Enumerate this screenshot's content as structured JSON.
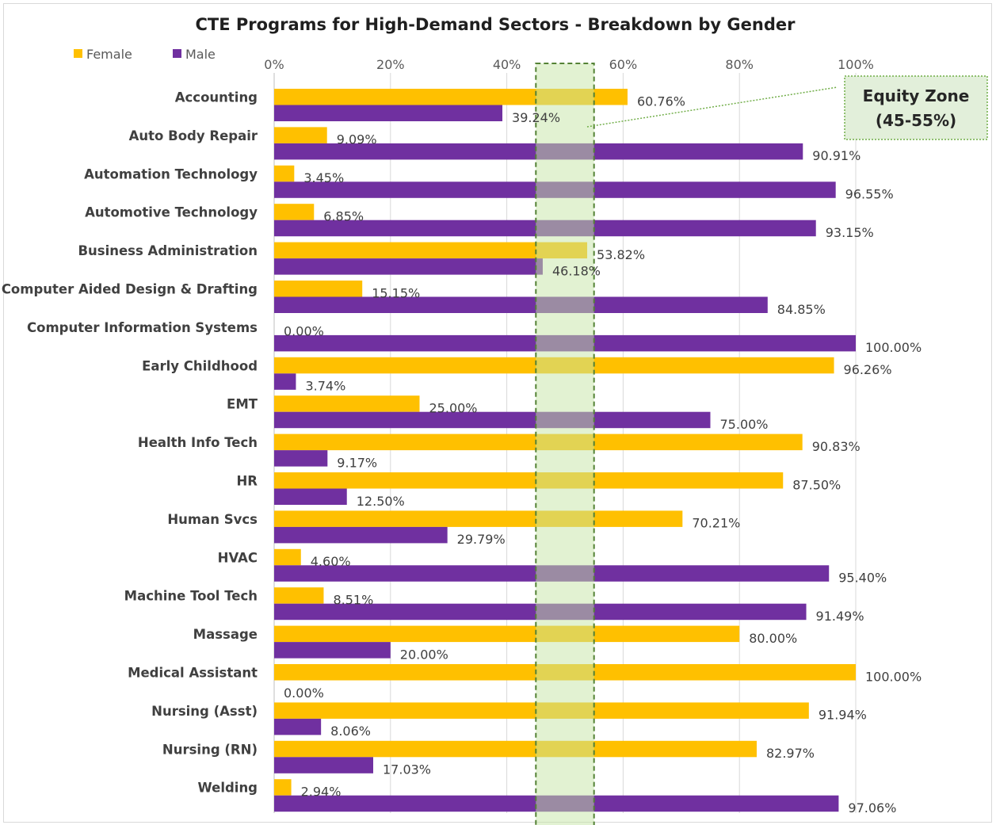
{
  "chart_data": {
    "type": "bar",
    "orientation": "horizontal",
    "title": "CTE Programs for High-Demand Sectors - Breakdown by Gender",
    "xlim": [
      0,
      100
    ],
    "x_ticks": [
      "0%",
      "20%",
      "40%",
      "60%",
      "80%",
      "100%"
    ],
    "x_tick_values": [
      0,
      20,
      40,
      60,
      80,
      100
    ],
    "grid": true,
    "legend_position": "top-left",
    "categories": [
      "Accounting",
      "Auto Body Repair",
      "Automation Technology",
      "Automotive Technology",
      "Business Administration",
      "Computer Aided Design & Drafting",
      "Computer Information Systems",
      "Early Childhood",
      "EMT",
      "Health Info Tech",
      "HR",
      "Human Svcs",
      "HVAC",
      "Machine Tool Tech",
      "Massage",
      "Medical Assistant",
      "Nursing (Asst)",
      "Nursing (RN)",
      "Welding"
    ],
    "series": [
      {
        "name": "Female",
        "color": "#FFC000",
        "values": [
          60.76,
          9.09,
          3.45,
          6.85,
          53.82,
          15.15,
          0.0,
          96.26,
          25.0,
          90.83,
          87.5,
          70.21,
          4.6,
          8.51,
          80.0,
          100.0,
          91.94,
          82.97,
          2.94
        ],
        "labels": [
          "60.76%",
          "9.09%",
          "3.45%",
          "6.85%",
          "53.82%",
          "15.15%",
          "0.00%",
          "96.26%",
          "25.00%",
          "90.83%",
          "87.50%",
          "70.21%",
          "4.60%",
          "8.51%",
          "80.00%",
          "100.00%",
          "91.94%",
          "82.97%",
          "2.94%"
        ]
      },
      {
        "name": "Male",
        "color": "#7030A0",
        "values": [
          39.24,
          90.91,
          96.55,
          93.15,
          46.18,
          84.85,
          100.0,
          3.74,
          75.0,
          9.17,
          12.5,
          29.79,
          95.4,
          91.49,
          20.0,
          0.0,
          8.06,
          17.03,
          97.06
        ],
        "labels": [
          "39.24%",
          "90.91%",
          "96.55%",
          "93.15%",
          "46.18%",
          "84.85%",
          "100.00%",
          "3.74%",
          "75.00%",
          "9.17%",
          "12.50%",
          "29.79%",
          "95.40%",
          "91.49%",
          "20.00%",
          "0.00%",
          "8.06%",
          "17.03%",
          "97.06%"
        ]
      }
    ],
    "band": {
      "from": 45,
      "to": 55,
      "fill_color": "#C6E5A6",
      "border_color": "#548235",
      "label_line1": "Equity Zone",
      "label_line2": "(45-55%)"
    }
  }
}
